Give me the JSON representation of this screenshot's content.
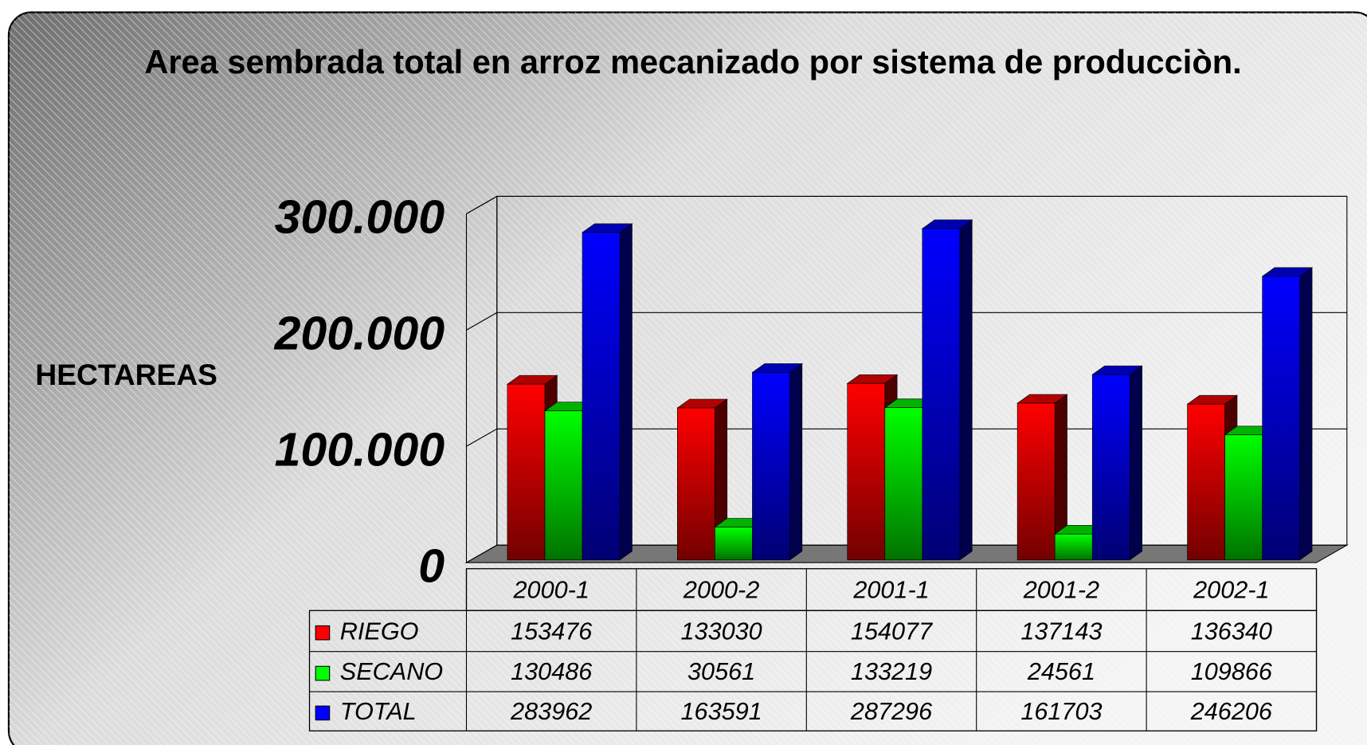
{
  "chart_data": {
    "type": "bar3d",
    "title": "Area sembrada total en arroz mecanizado por sistema de producciòn.",
    "y_label": "HECTAREAS",
    "categories": [
      "2000-1",
      "2000-2",
      "2001-1",
      "2001-2",
      "2002-1"
    ],
    "series": [
      {
        "name": "RIEGO",
        "color": "#ff0000",
        "values": [
          153476,
          133030,
          154077,
          137143,
          136340
        ]
      },
      {
        "name": "SECANO",
        "color": "#00ff00",
        "values": [
          130486,
          30561,
          133219,
          24561,
          109866
        ]
      },
      {
        "name": "TOTAL",
        "color": "#0000ff",
        "values": [
          283962,
          163591,
          287296,
          161703,
          246206
        ]
      }
    ],
    "ylim": [
      0,
      300000
    ],
    "yticks": [
      0,
      {
        "value": 100000,
        "label": "100.000"
      },
      {
        "value": 200000,
        "label": "200.000"
      },
      {
        "value": 300000,
        "label": "300.000"
      }
    ],
    "grid": true,
    "data_table": true
  }
}
